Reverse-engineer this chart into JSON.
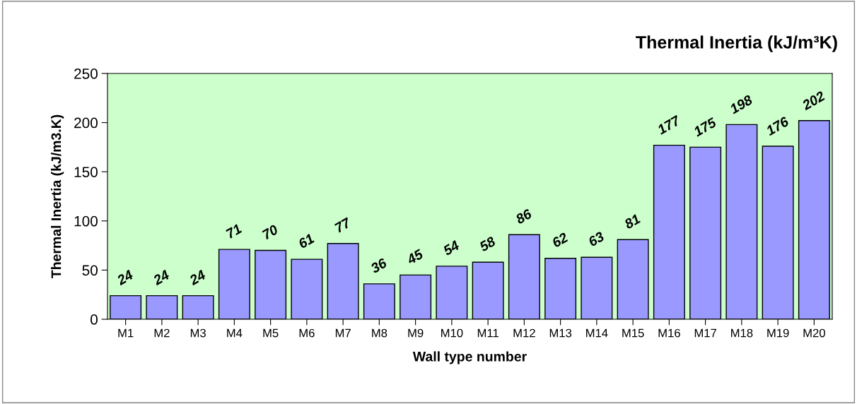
{
  "chart_data": {
    "type": "bar",
    "title": "Thermal Inertia (kJ/m³K)",
    "xlabel": "Wall type number",
    "ylabel": "Thermal Inertia (kJ/m3.K)",
    "categories": [
      "M1",
      "M2",
      "M3",
      "M4",
      "M5",
      "M6",
      "M7",
      "M8",
      "M9",
      "M10",
      "M11",
      "M12",
      "M13",
      "M14",
      "M15",
      "M16",
      "M17",
      "M18",
      "M19",
      "M20"
    ],
    "values": [
      24,
      24,
      24,
      71,
      70,
      61,
      77,
      36,
      45,
      54,
      58,
      86,
      62,
      63,
      81,
      177,
      175,
      198,
      176,
      202
    ],
    "color": "#9999ff",
    "ylim": [
      0,
      250
    ],
    "yticks": [
      0,
      50,
      100,
      150,
      200,
      250
    ],
    "grid": false,
    "data_labels": true
  }
}
